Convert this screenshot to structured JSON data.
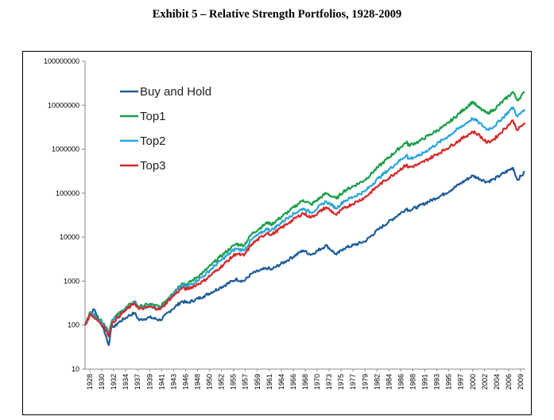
{
  "page": {
    "title": "Exhibit 5 – Relative Strength Portfolios, 1928-2009"
  },
  "chart_data": {
    "type": "line",
    "title": "",
    "xlabel": "",
    "ylabel": "",
    "yscale": "log",
    "ylim": [
      10,
      100000000
    ],
    "xlim": [
      1928,
      2009.8
    ],
    "grid": false,
    "legend_position": "top-left",
    "y_ticks": [
      10,
      100,
      1000,
      10000,
      100000,
      1000000,
      10000000,
      100000000
    ],
    "y_tick_labels": [
      "10",
      "100",
      "1000",
      "10000",
      "100000",
      "1000000",
      "10000000",
      "100000000"
    ],
    "x_tick_labels": [
      "1928",
      "1930",
      "1932",
      "1934",
      "1937",
      "1939",
      "1941",
      "1943",
      "1946",
      "1948",
      "1950",
      "1952",
      "1955",
      "1957",
      "1959",
      "1961",
      "1964",
      "1966",
      "1968",
      "1970",
      "1973",
      "1975",
      "1977",
      "1979",
      "1982",
      "1984",
      "1986",
      "1988",
      "1991",
      "1993",
      "1995",
      "1997",
      "2000",
      "2002",
      "2004",
      "2006",
      "2009"
    ],
    "series": [
      {
        "name": "Buy and Hold",
        "color": "#1f5c99",
        "x": [
          1928,
          1929,
          1929.7,
          1930.5,
          1931.5,
          1932.4,
          1933,
          1933.5,
          1934,
          1936,
          1937.2,
          1938,
          1940,
          1942,
          1944,
          1946,
          1947,
          1950,
          1953,
          1956,
          1957.5,
          1959,
          1962,
          1962.5,
          1966,
          1968.5,
          1970,
          1972.8,
          1974.7,
          1976,
          1980,
          1982.5,
          1987.8,
          1988,
          1990,
          1995,
          2000,
          2002.7,
          2004,
          2007.5,
          2008.3,
          2009.7
        ],
        "values": [
          100,
          180,
          230,
          140,
          80,
          35,
          100,
          90,
          110,
          160,
          190,
          130,
          150,
          130,
          220,
          350,
          320,
          450,
          700,
          1100,
          1000,
          1500,
          2000,
          1800,
          3200,
          5000,
          4000,
          6500,
          4000,
          5500,
          8000,
          15000,
          45000,
          40000,
          50000,
          100000,
          250000,
          180000,
          210000,
          380000,
          200000,
          300000
        ]
      },
      {
        "name": "Top1",
        "color": "#1e9e4a",
        "x": [
          1928,
          1929,
          1930,
          1931.5,
          1932.4,
          1933,
          1935,
          1937.2,
          1938,
          1940,
          1942,
          1944,
          1946,
          1947,
          1950,
          1953,
          1956,
          1957.5,
          1959,
          1962,
          1962.5,
          1966,
          1968.5,
          1970,
          1972.8,
          1974.7,
          1976,
          1980,
          1982.5,
          1987.8,
          1988,
          1990,
          1995,
          2000,
          2001,
          2002.7,
          2004,
          2007.5,
          2008.3,
          2009.7
        ],
        "values": [
          100,
          200,
          160,
          110,
          70,
          130,
          220,
          350,
          260,
          300,
          260,
          500,
          900,
          850,
          1600,
          3500,
          7000,
          6500,
          12000,
          22000,
          19000,
          40000,
          70000,
          55000,
          100000,
          75000,
          110000,
          200000,
          400000,
          1500000,
          1200000,
          1500000,
          3500000,
          12000000,
          9000000,
          6500000,
          8000000,
          20000000,
          13000000,
          20000000
        ]
      },
      {
        "name": "Top2",
        "color": "#2aa6dc",
        "x": [
          1928,
          1929,
          1930,
          1931.5,
          1932.4,
          1933,
          1935,
          1937.2,
          1938,
          1940,
          1942,
          1944,
          1946,
          1947,
          1950,
          1953,
          1956,
          1957.5,
          1959,
          1962,
          1962.5,
          1966,
          1968.5,
          1970,
          1972.8,
          1974.7,
          1976,
          1980,
          1982.5,
          1987.8,
          1988,
          1990,
          1995,
          2000,
          2001,
          2002.7,
          2004,
          2007.5,
          2008.3,
          2009.7
        ],
        "values": [
          100,
          190,
          150,
          100,
          60,
          120,
          200,
          330,
          240,
          270,
          240,
          450,
          800,
          750,
          1300,
          2800,
          5500,
          5000,
          9000,
          16000,
          14000,
          30000,
          45000,
          36000,
          65000,
          45000,
          65000,
          110000,
          220000,
          750000,
          600000,
          700000,
          1800000,
          5000000,
          4200000,
          2800000,
          3300000,
          9000000,
          5500000,
          8000000
        ]
      },
      {
        "name": "Top3",
        "color": "#d42a2a",
        "x": [
          1928,
          1929,
          1930,
          1931.5,
          1932.4,
          1933,
          1935,
          1937.2,
          1938,
          1940,
          1942,
          1944,
          1946,
          1947,
          1950,
          1953,
          1956,
          1957.5,
          1959,
          1962,
          1962.5,
          1966,
          1968.5,
          1970,
          1972.8,
          1974.7,
          1976,
          1980,
          1982.5,
          1987.8,
          1988,
          1990,
          1995,
          2000,
          2001,
          2002.7,
          2004,
          2007.5,
          2008.3,
          2009.7
        ],
        "values": [
          100,
          180,
          140,
          95,
          55,
          110,
          190,
          320,
          230,
          260,
          230,
          420,
          700,
          650,
          1000,
          2000,
          4200,
          3800,
          7000,
          13000,
          11000,
          22000,
          35000,
          28000,
          48000,
          32000,
          45000,
          80000,
          150000,
          450000,
          380000,
          450000,
          1000000,
          2500000,
          2200000,
          1400000,
          1700000,
          4500000,
          2700000,
          4000000
        ]
      }
    ]
  }
}
